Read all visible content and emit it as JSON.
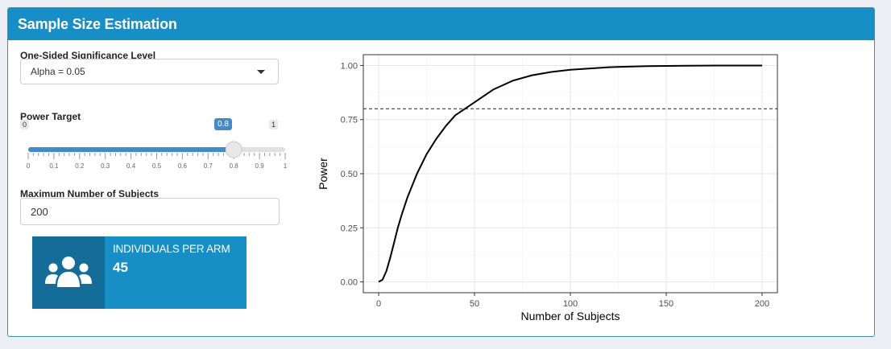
{
  "header": {
    "title": "Sample Size Estimation"
  },
  "alpha": {
    "label": "One-Sided Significance Level",
    "selected": "Alpha = 0.05"
  },
  "power": {
    "label": "Power Target",
    "min": "0",
    "max": "1",
    "value_label": "0.8",
    "value": 0.8,
    "ticks": [
      "0",
      "0.1",
      "0.2",
      "0.3",
      "0.4",
      "0.5",
      "0.6",
      "0.7",
      "0.8",
      "0.9",
      "1"
    ]
  },
  "max_subjects": {
    "label": "Maximum Number of Subjects",
    "value": "200"
  },
  "result": {
    "text": "INDIVIDUALS PER ARM",
    "number": "45",
    "icon": "users-icon"
  },
  "colors": {
    "header": "#178fc6",
    "accent": "#428bca",
    "info_box": "#178fc6",
    "info_icon_bg": "#146d98"
  },
  "chart_data": {
    "type": "line",
    "xlabel": "Number of Subjects",
    "ylabel": "Power",
    "xlim": [
      -8,
      208
    ],
    "ylim": [
      -0.05,
      1.05
    ],
    "x_ticks": [
      0,
      50,
      100,
      150,
      200
    ],
    "y_ticks": [
      0.0,
      0.25,
      0.5,
      0.75,
      1.0
    ],
    "y_tick_labels": [
      "0.00",
      "0.25",
      "0.50",
      "0.75",
      "1.00"
    ],
    "x_tick_labels": [
      "0",
      "50",
      "100",
      "150",
      "200"
    ],
    "grid": true,
    "reference_line": {
      "y": 0.8,
      "style": "dashed"
    },
    "series": [
      {
        "x": [
          0,
          2,
          4,
          6,
          8,
          10,
          12,
          15,
          20,
          25,
          30,
          35,
          40,
          45,
          50,
          60,
          70,
          80,
          90,
          100,
          120,
          140,
          160,
          180,
          200
        ],
        "y": [
          0.0,
          0.01,
          0.05,
          0.11,
          0.18,
          0.25,
          0.31,
          0.39,
          0.5,
          0.59,
          0.66,
          0.72,
          0.77,
          0.8,
          0.83,
          0.89,
          0.93,
          0.955,
          0.97,
          0.98,
          0.992,
          0.997,
          0.999,
          1.0,
          1.0
        ]
      }
    ]
  }
}
